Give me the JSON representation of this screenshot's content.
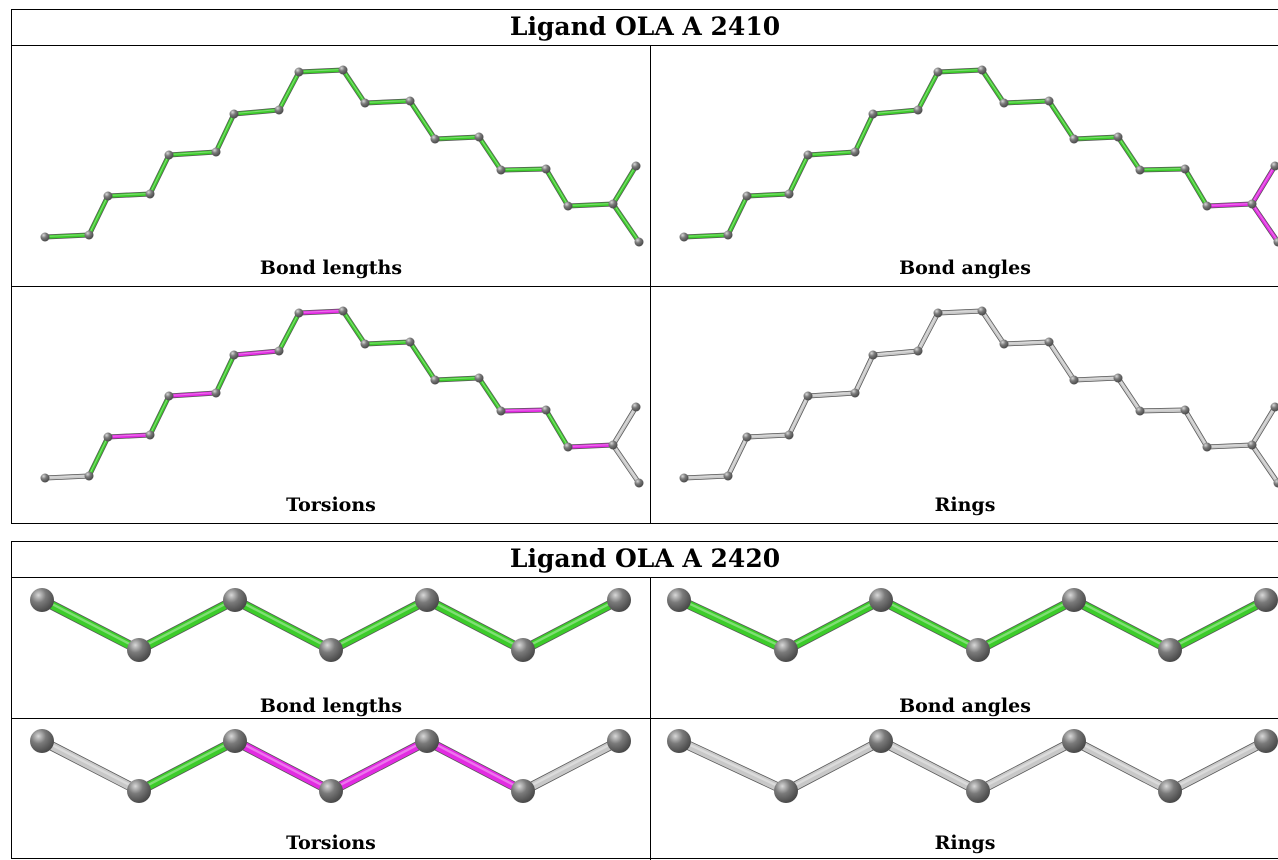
{
  "tables": [
    {
      "title": "Ligand OLA A 2410",
      "labels": [
        "Bond lengths",
        "Bond angles",
        "Torsions",
        "Rings"
      ]
    },
    {
      "title": "Ligand OLA A 2420",
      "labels": [
        "Bond lengths",
        "Bond angles",
        "Torsions",
        "Rings"
      ]
    }
  ],
  "colors": {
    "green": "#3ccc2a",
    "magenta": "#e22be2",
    "grey": "#c8c8c8",
    "atom": "#7a7a7a"
  }
}
